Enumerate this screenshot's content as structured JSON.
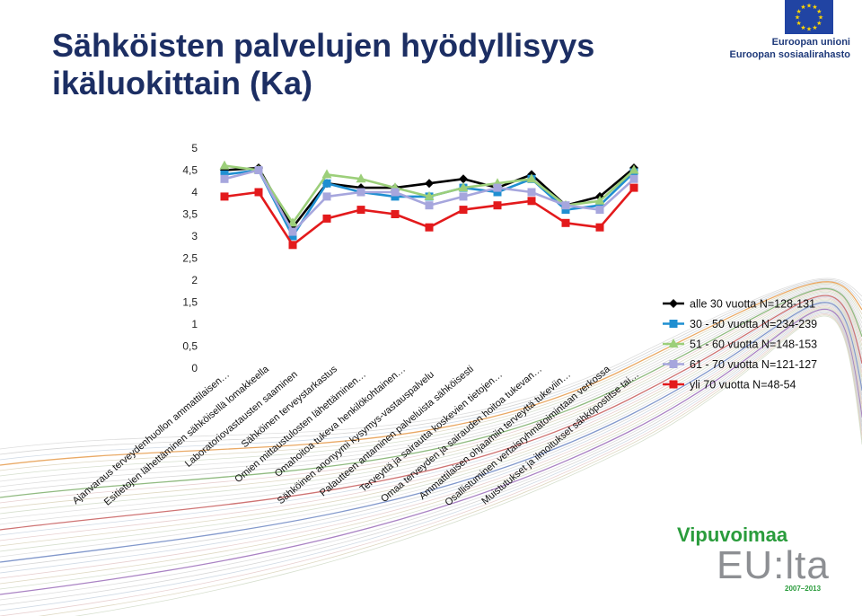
{
  "title_line1": "Sähköisten palvelujen hyödyllisyys",
  "title_line2": "ikäluokittain (Ka)",
  "eu_logo": {
    "line1": "Euroopan unioni",
    "line2": "Euroopan sosiaalirahasto",
    "flag_color": "#2144a3",
    "star_color": "#ffd500"
  },
  "bottom_logo": {
    "line1": "Vipuvoimaa",
    "line2": "EU:lta",
    "line3": "2007–2013",
    "green": "#2a9c3c",
    "gray": "#8d8f93"
  },
  "chart_data": {
    "type": "line",
    "title": "",
    "xlabel": "",
    "ylabel": "",
    "ylim": [
      0,
      5
    ],
    "yticks": [
      "0",
      "0,5",
      "1",
      "1,5",
      "2",
      "2,5",
      "3",
      "3,5",
      "4",
      "4,5",
      "5"
    ],
    "grid": false,
    "legend_position": "right",
    "categories": [
      "Ajanvaraus terveydenhuollon ammattilaisen…",
      "Esitietojen lähettäminen sähköisellä lomakkeella",
      "Laboratoriovastausten saaminen",
      "Sähköinen terveystarkastus",
      "Omien mittaustulosten lähettäminen…",
      "Omahoitoa tukeva henkilökohtainen…",
      "Sähköinen anonyymi kysymys-vastauspalvelu",
      "Palautteen antaminen palveluista sähköisesti",
      "Terveyttä ja sairautta koskevien tietojen…",
      "Omaa terveyden ja sairauden hoitoa tukevan…",
      "Ammattilaisen ohjaamiin terveyttä tukeviin…",
      "Osallistuminen vertaisryhmätoimintaan verkossa",
      "Muistutukset ja ilmoitukset sähköpostitse tai…"
    ],
    "series": [
      {
        "name": "alle 30 vuotta N=128-131",
        "color": "#000000",
        "marker": "diamond",
        "values": [
          4.5,
          4.55,
          3.2,
          4.2,
          4.1,
          4.1,
          4.2,
          4.3,
          4.1,
          4.4,
          3.7,
          3.9,
          4.55
        ]
      },
      {
        "name": "30 - 50 vuotta N=234-239",
        "color": "#1f8fd1",
        "marker": "square",
        "values": [
          4.4,
          4.5,
          3.0,
          4.2,
          4.0,
          3.9,
          3.9,
          4.1,
          4.0,
          4.3,
          3.6,
          3.7,
          4.45
        ]
      },
      {
        "name": "51 - 60 vuotta N=148-153",
        "color": "#9ccf7a",
        "marker": "triangle",
        "values": [
          4.6,
          4.5,
          3.3,
          4.4,
          4.3,
          4.1,
          3.9,
          4.1,
          4.2,
          4.3,
          3.7,
          3.8,
          4.5
        ]
      },
      {
        "name": "61 - 70 vuotta N=121-127",
        "color": "#a6a6dd",
        "marker": "square",
        "values": [
          4.3,
          4.5,
          3.1,
          3.9,
          4.0,
          4.0,
          3.7,
          3.9,
          4.1,
          4.0,
          3.7,
          3.6,
          4.3
        ]
      },
      {
        "name": "yli 70 vuotta N=48-54",
        "color": "#e31a1c",
        "marker": "square",
        "values": [
          3.9,
          4.0,
          2.8,
          3.4,
          3.6,
          3.5,
          3.2,
          3.6,
          3.7,
          3.8,
          3.3,
          3.2,
          4.1
        ]
      }
    ]
  }
}
